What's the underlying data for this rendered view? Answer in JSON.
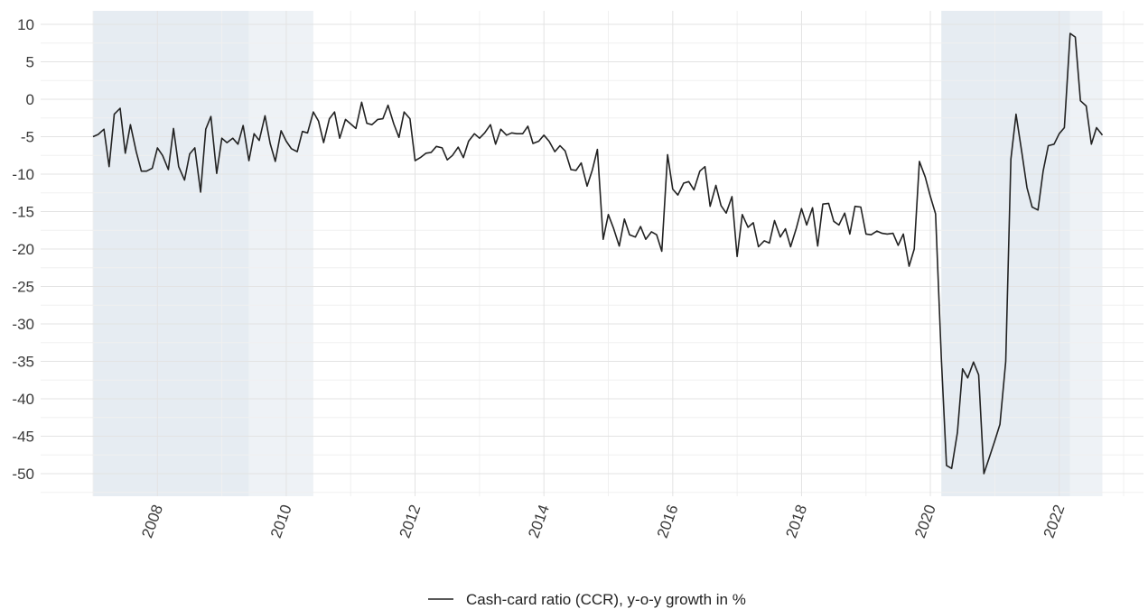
{
  "chart_data": {
    "type": "line",
    "xlabel": "",
    "ylabel": "",
    "xlim": [
      2007.0,
      2023.0
    ],
    "ylim": [
      -52.5,
      11.5
    ],
    "grid": true,
    "legend_position": "bottom",
    "y_ticks": [
      10,
      5,
      0,
      -5,
      -10,
      -15,
      -20,
      -25,
      -30,
      -35,
      -40,
      -45,
      -50
    ],
    "y_tick_labels": [
      "10",
      "5",
      "0",
      "-5",
      "-10",
      "-15",
      "-20",
      "-25",
      "-30",
      "-35",
      "-40",
      "-45",
      "-50"
    ],
    "x_ticks": [
      2008,
      2010,
      2012,
      2014,
      2016,
      2018,
      2020,
      2022
    ],
    "x_tick_labels": [
      "2008",
      "2010",
      "2012",
      "2014",
      "2016",
      "2018",
      "2020",
      "2022"
    ],
    "shaded_periods": [
      {
        "start": 2007.0,
        "end": 2009.42,
        "fill": "#e6ecf2"
      },
      {
        "start": 2009.42,
        "end": 2010.42,
        "fill": "#eef2f6"
      },
      {
        "start": 2020.17,
        "end": 2022.17,
        "fill": "#e6ecf2"
      },
      {
        "start": 2022.17,
        "end": 2022.67,
        "fill": "#eef2f6"
      }
    ],
    "series": [
      {
        "name": "Cash-card ratio (CCR), y-o-y growth in %",
        "color": "#222222",
        "x": [
          2007.0,
          2007.08,
          2007.17,
          2007.25,
          2007.33,
          2007.42,
          2007.5,
          2007.58,
          2007.67,
          2007.75,
          2007.83,
          2007.92,
          2008.0,
          2008.08,
          2008.17,
          2008.25,
          2008.33,
          2008.42,
          2008.5,
          2008.58,
          2008.67,
          2008.75,
          2008.83,
          2008.92,
          2009.0,
          2009.08,
          2009.17,
          2009.25,
          2009.33,
          2009.42,
          2009.5,
          2009.58,
          2009.67,
          2009.75,
          2009.83,
          2009.92,
          2010.0,
          2010.08,
          2010.17,
          2010.25,
          2010.33,
          2010.42,
          2010.5,
          2010.58,
          2010.67,
          2010.75,
          2010.83,
          2010.92,
          2011.0,
          2011.08,
          2011.17,
          2011.25,
          2011.33,
          2011.42,
          2011.5,
          2011.58,
          2011.67,
          2011.75,
          2011.83,
          2011.92,
          2012.0,
          2012.08,
          2012.17,
          2012.25,
          2012.33,
          2012.42,
          2012.5,
          2012.58,
          2012.67,
          2012.75,
          2012.83,
          2012.92,
          2013.0,
          2013.08,
          2013.17,
          2013.25,
          2013.33,
          2013.42,
          2013.5,
          2013.58,
          2013.67,
          2013.75,
          2013.83,
          2013.92,
          2014.0,
          2014.08,
          2014.17,
          2014.25,
          2014.33,
          2014.42,
          2014.5,
          2014.58,
          2014.67,
          2014.75,
          2014.83,
          2014.92,
          2015.0,
          2015.08,
          2015.17,
          2015.25,
          2015.33,
          2015.42,
          2015.5,
          2015.58,
          2015.67,
          2015.75,
          2015.83,
          2015.92,
          2016.0,
          2016.08,
          2016.17,
          2016.25,
          2016.33,
          2016.42,
          2016.5,
          2016.58,
          2016.67,
          2016.75,
          2016.83,
          2016.92,
          2017.0,
          2017.08,
          2017.17,
          2017.25,
          2017.33,
          2017.42,
          2017.5,
          2017.58,
          2017.67,
          2017.75,
          2017.83,
          2017.92,
          2018.0,
          2018.08,
          2018.17,
          2018.25,
          2018.33,
          2018.42,
          2018.5,
          2018.58,
          2018.67,
          2018.75,
          2018.83,
          2018.92,
          2019.0,
          2019.08,
          2019.17,
          2019.25,
          2019.33,
          2019.42,
          2019.5,
          2019.58,
          2019.67,
          2019.75,
          2019.83,
          2019.92,
          2020.0,
          2020.08,
          2020.17,
          2020.25,
          2020.33,
          2020.42,
          2020.5,
          2020.58,
          2020.67,
          2020.75,
          2020.83,
          2020.92,
          2021.0,
          2021.08,
          2021.17,
          2021.25,
          2021.33,
          2021.42,
          2021.5,
          2021.58,
          2021.67,
          2021.75,
          2021.83,
          2021.92,
          2022.0,
          2022.08,
          2022.17,
          2022.25,
          2022.33,
          2022.42,
          2022.5,
          2022.58,
          2022.67
        ],
        "values": [
          -5.0,
          -4.7,
          -4.0,
          -9.0,
          -2.0,
          -1.2,
          -7.2,
          -3.4,
          -7.0,
          -9.6,
          -9.6,
          -9.2,
          -6.5,
          -7.5,
          -9.4,
          -3.9,
          -9.0,
          -10.8,
          -7.3,
          -6.5,
          -12.4,
          -4.0,
          -2.3,
          -9.9,
          -5.2,
          -5.8,
          -5.2,
          -6.0,
          -3.5,
          -8.2,
          -4.6,
          -5.5,
          -2.2,
          -5.9,
          -8.3,
          -4.2,
          -5.6,
          -6.6,
          -7.0,
          -4.3,
          -4.5,
          -1.7,
          -2.9,
          -5.8,
          -2.6,
          -1.7,
          -5.2,
          -2.7,
          -3.3,
          -3.9,
          -0.4,
          -3.2,
          -3.4,
          -2.7,
          -2.6,
          -0.8,
          -3.3,
          -5.1,
          -1.7,
          -2.6,
          -8.2,
          -7.8,
          -7.2,
          -7.1,
          -6.3,
          -6.5,
          -8.1,
          -7.5,
          -6.4,
          -7.8,
          -5.6,
          -4.6,
          -5.2,
          -4.5,
          -3.4,
          -6.0,
          -4.0,
          -4.8,
          -4.5,
          -4.6,
          -4.6,
          -3.6,
          -5.9,
          -5.6,
          -4.8,
          -5.6,
          -7.0,
          -6.2,
          -6.9,
          -9.4,
          -9.5,
          -8.5,
          -11.6,
          -9.5,
          -6.7,
          -18.7,
          -15.4,
          -17.2,
          -19.6,
          -16.0,
          -18.1,
          -18.4,
          -17.0,
          -18.7,
          -17.7,
          -18.1,
          -20.3,
          -7.4,
          -12.0,
          -12.8,
          -11.2,
          -11.0,
          -12.1,
          -9.6,
          -9.0,
          -14.3,
          -11.5,
          -14.2,
          -15.2,
          -13.0,
          -21.0,
          -15.4,
          -17.1,
          -16.5,
          -19.7,
          -18.9,
          -19.2,
          -16.2,
          -18.4,
          -17.3,
          -19.7,
          -17.2,
          -14.6,
          -16.8,
          -14.5,
          -19.6,
          -14.0,
          -13.9,
          -16.3,
          -16.8,
          -15.2,
          -18.0,
          -14.3,
          -14.4,
          -18.0,
          -18.1,
          -17.6,
          -17.9,
          -18.0,
          -17.9,
          -19.5,
          -18.0,
          -22.3,
          -20.0,
          -8.3,
          -10.4,
          -13.0,
          -15.3,
          -34.6,
          -48.9,
          -49.3,
          -44.5,
          -36.0,
          -37.2,
          -35.1,
          -36.8,
          -50.0,
          -47.7,
          -45.6,
          -43.4,
          -35.0,
          -8.0,
          -2.0,
          -7.1,
          -11.8,
          -14.4,
          -14.8,
          -9.6,
          -6.2,
          -6.0,
          -4.6,
          -3.8,
          8.8,
          8.3,
          -0.2,
          -0.9,
          -6.0,
          -3.8,
          -4.8
        ]
      }
    ]
  }
}
